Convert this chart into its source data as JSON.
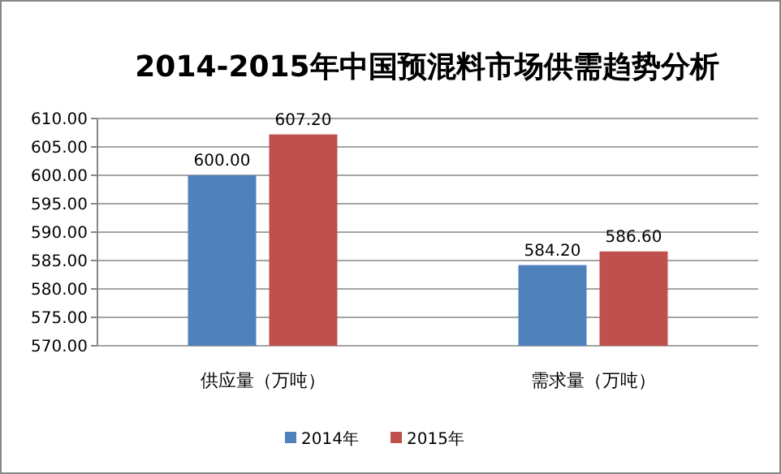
{
  "chart_data": {
    "type": "bar",
    "title": "2014-2015年中国预混料市场供需趋势分析",
    "categories": [
      "供应量（万吨）",
      "需求量（万吨）"
    ],
    "series": [
      {
        "name": "2014年",
        "color": "#4f81bd",
        "values": [
          600.0,
          584.2
        ]
      },
      {
        "name": "2015年",
        "color": "#c0504d",
        "values": [
          607.2,
          586.6
        ]
      }
    ],
    "value_labels": [
      [
        "600.00",
        "584.20"
      ],
      [
        "607.20",
        "586.60"
      ]
    ],
    "ylim": [
      570,
      610
    ],
    "yticks": [
      {
        "value": 570,
        "label": "570.00"
      },
      {
        "value": 575,
        "label": "575.00"
      },
      {
        "value": 580,
        "label": "580.00"
      },
      {
        "value": 585,
        "label": "585.00"
      },
      {
        "value": 590,
        "label": "590.00"
      },
      {
        "value": 595,
        "label": "595.00"
      },
      {
        "value": 600,
        "label": "600.00"
      },
      {
        "value": 605,
        "label": "605.00"
      },
      {
        "value": 610,
        "label": "610.00"
      }
    ],
    "grid": "y",
    "legend": "bottom"
  }
}
